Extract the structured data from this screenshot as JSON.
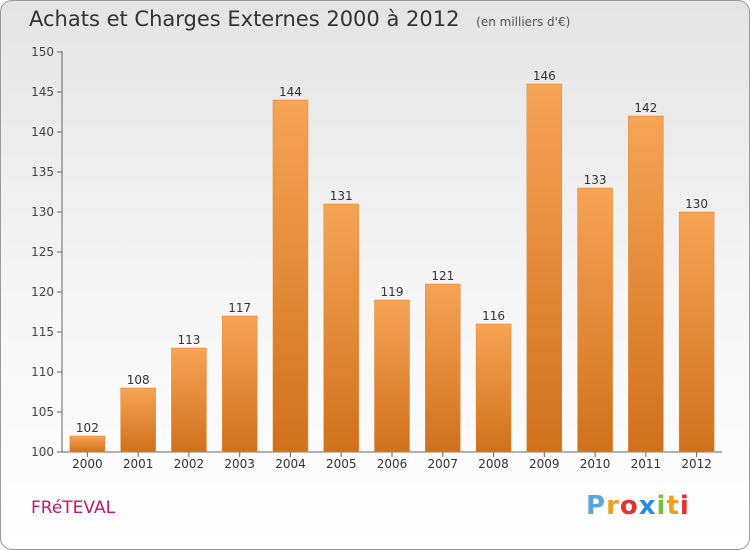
{
  "title": "Achats et Charges Externes 2000 à 2012",
  "subtitle": "(en milliers d'€)",
  "town": "FRéTEVAL",
  "brand": {
    "letters": [
      "P",
      "r",
      "o",
      "x",
      "i",
      "t",
      "i"
    ],
    "colors": [
      "#5aa7e0",
      "#f0a020",
      "#e83030",
      "#2a8de0",
      "#7cc040",
      "#f0a020",
      "#e83030"
    ]
  },
  "chart_data": {
    "type": "bar",
    "categories": [
      "2000",
      "2001",
      "2002",
      "2003",
      "2004",
      "2005",
      "2006",
      "2007",
      "2008",
      "2009",
      "2010",
      "2011",
      "2012"
    ],
    "values": [
      102,
      108,
      113,
      117,
      144,
      131,
      119,
      121,
      116,
      146,
      133,
      142,
      130
    ],
    "ylim": [
      100,
      150
    ],
    "yticks": [
      100,
      105,
      110,
      115,
      120,
      125,
      130,
      135,
      140,
      145,
      150
    ],
    "bar_color_top": "#f6a455",
    "bar_color_bottom": "#d0711c",
    "grid": false
  }
}
